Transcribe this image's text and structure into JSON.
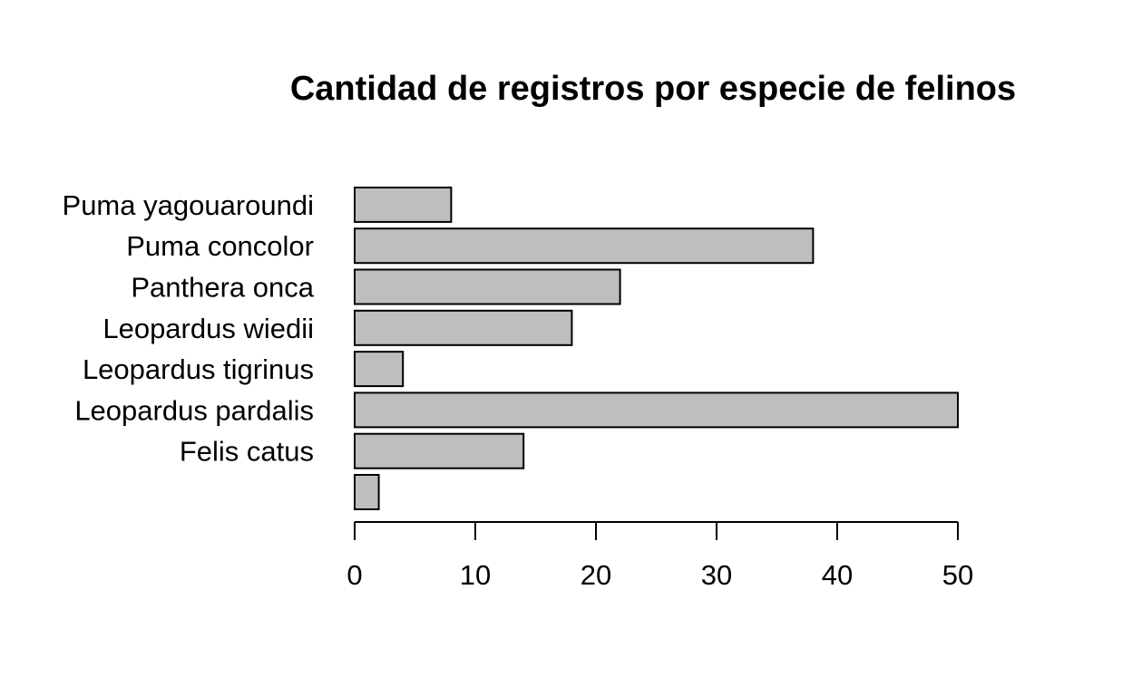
{
  "chart_data": {
    "type": "bar",
    "orientation": "horizontal",
    "title": "Cantidad de registros por especie de felinos",
    "xlabel": "",
    "ylabel": "",
    "categories": [
      "",
      "Felis catus",
      "Leopardus pardalis",
      "Leopardus tigrinus",
      "Leopardus wiedii",
      "Panthera onca",
      "Puma concolor",
      "Puma yagouaroundi"
    ],
    "values": [
      2,
      14,
      50,
      4,
      18,
      22,
      38,
      8
    ],
    "xlim": [
      0,
      50
    ],
    "xticks": [
      "0",
      "10",
      "20",
      "30",
      "40",
      "50"
    ],
    "bar_color": "#bebebe",
    "border_color": "#000000",
    "grid": false,
    "legend": "none"
  }
}
